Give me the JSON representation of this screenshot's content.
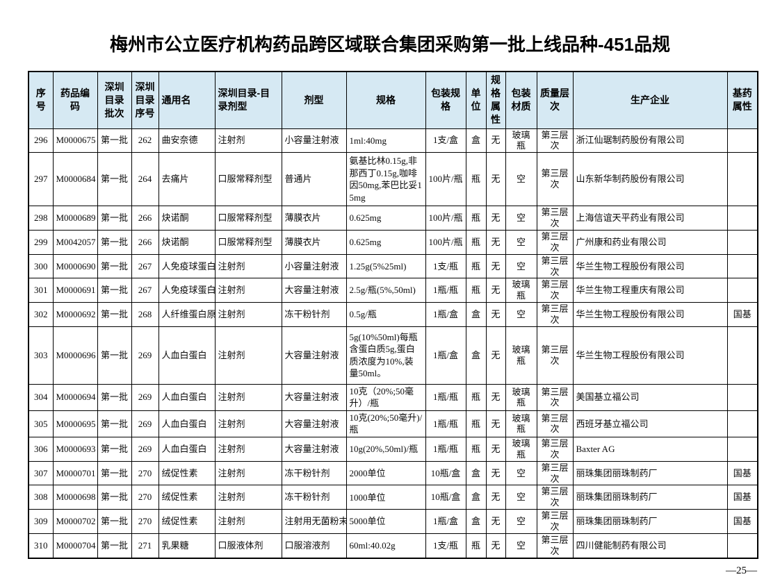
{
  "page": {
    "title": "梅州市公立医疗机构药品跨区域联合集团采购第一批上线品种-451品规",
    "page_number": "—25—"
  },
  "colors": {
    "header_bg": "#d6e9f3",
    "border": "#000000",
    "title_text": "#000000"
  },
  "table": {
    "headers": [
      "序号",
      "药品编码",
      "深圳目录批次",
      "深圳目录序号",
      "通用名",
      "深圳目录-目录剂型",
      "剂型",
      "规格",
      "包装规格",
      "单位",
      "规格属性",
      "包装材质",
      "质量层次",
      "生产企业",
      "基药属性"
    ],
    "rows": [
      [
        "296",
        "M0000675",
        "第一批",
        "262",
        "曲安奈德",
        "注射剂",
        "小容量注射液",
        "1ml:40mg",
        "1支/盒",
        "盒",
        "无",
        "玻璃瓶",
        "第三层次",
        "浙江仙琚制药股份有限公司",
        ""
      ],
      [
        "297",
        "M0000684",
        "第一批",
        "264",
        "去痛片",
        "口服常释剂型",
        "普通片",
        "氨基比林0.15g,非那西丁0.15g,咖啡因50mg,苯巴比妥15mg",
        "100片/瓶",
        "瓶",
        "无",
        "空",
        "第三层次",
        "山东新华制药股份有限公司",
        ""
      ],
      [
        "298",
        "M0000689",
        "第一批",
        "266",
        "炔诺酮",
        "口服常释剂型",
        "薄膜衣片",
        "0.625mg",
        "100片/瓶",
        "瓶",
        "无",
        "空",
        "第三层次",
        "上海信谊天平药业有限公司",
        ""
      ],
      [
        "299",
        "M0042057",
        "第一批",
        "266",
        "炔诺酮",
        "口服常释剂型",
        "薄膜衣片",
        "0.625mg",
        "100片/瓶",
        "瓶",
        "无",
        "空",
        "第三层次",
        "广州康和药业有限公司",
        ""
      ],
      [
        "300",
        "M0000690",
        "第一批",
        "267",
        "人免疫球蛋白",
        "注射剂",
        "小容量注射液",
        "1.25g(5%25ml)",
        "1支/瓶",
        "瓶",
        "无",
        "空",
        "第三层次",
        "华兰生物工程股份有限公司",
        ""
      ],
      [
        "301",
        "M0000691",
        "第一批",
        "267",
        "人免疫球蛋白",
        "注射剂",
        "大容量注射液",
        "2.5g/瓶(5%,50ml)",
        "1瓶/瓶",
        "瓶",
        "无",
        "玻璃瓶",
        "第三层次",
        "华兰生物工程重庆有限公司",
        ""
      ],
      [
        "302",
        "M0000692",
        "第一批",
        "268",
        "人纤维蛋白原",
        "注射剂",
        "冻干粉针剂",
        "0.5g/瓶",
        "1瓶/盒",
        "盒",
        "无",
        "空",
        "第三层次",
        "华兰生物工程股份有限公司",
        "国基"
      ],
      [
        "303",
        "M0000696",
        "第一批",
        "269",
        "人血白蛋白",
        "注射剂",
        "大容量注射液",
        "5g(10%50ml)每瓶含蛋白质5g,蛋白质浓度为10%,装量50ml。",
        "1瓶/盒",
        "盒",
        "无",
        "玻璃瓶",
        "第三层次",
        "华兰生物工程股份有限公司",
        ""
      ],
      [
        "304",
        "M0000694",
        "第一批",
        "269",
        "人血白蛋白",
        "注射剂",
        "大容量注射液",
        "10克（20%;50毫升）/瓶",
        "1瓶/瓶",
        "瓶",
        "无",
        "玻璃瓶",
        "第三层次",
        "美国基立福公司",
        ""
      ],
      [
        "305",
        "M0000695",
        "第一批",
        "269",
        "人血白蛋白",
        "注射剂",
        "大容量注射液",
        "10克(20%;50毫升)/瓶",
        "1瓶/瓶",
        "瓶",
        "无",
        "玻璃瓶",
        "第三层次",
        "西班牙基立福公司",
        ""
      ],
      [
        "306",
        "M0000693",
        "第一批",
        "269",
        "人血白蛋白",
        "注射剂",
        "大容量注射液",
        "10g(20%,50ml)/瓶",
        "1瓶/瓶",
        "瓶",
        "无",
        "玻璃瓶",
        "第三层次",
        "Baxter AG",
        ""
      ],
      [
        "307",
        "M0000701",
        "第一批",
        "270",
        "绒促性素",
        "注射剂",
        "冻干粉针剂",
        "2000单位",
        "10瓶/盒",
        "盒",
        "无",
        "空",
        "第三层次",
        "丽珠集团丽珠制药厂",
        "国基"
      ],
      [
        "308",
        "M0000698",
        "第一批",
        "270",
        "绒促性素",
        "注射剂",
        "冻干粉针剂",
        "1000单位",
        "10瓶/盒",
        "盒",
        "无",
        "空",
        "第三层次",
        "丽珠集团丽珠制药厂",
        "国基"
      ],
      [
        "309",
        "M0000702",
        "第一批",
        "270",
        "绒促性素",
        "注射剂",
        "注射用无菌粉末",
        "5000单位",
        "1瓶/盒",
        "盒",
        "无",
        "空",
        "第三层次",
        "丽珠集团丽珠制药厂",
        "国基"
      ],
      [
        "310",
        "M0000704",
        "第一批",
        "271",
        "乳果糖",
        "口服液体剂",
        "口服溶液剂",
        "60ml:40.02g",
        "1支/瓶",
        "瓶",
        "无",
        "空",
        "第三层次",
        "四川健能制药有限公司",
        ""
      ]
    ]
  }
}
